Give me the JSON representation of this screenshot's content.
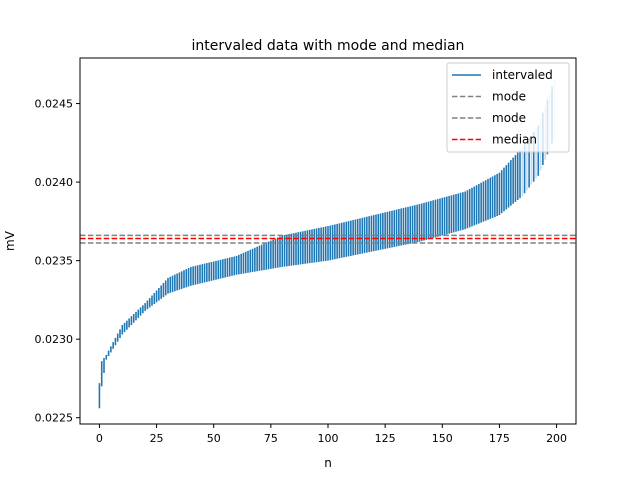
{
  "colors": {
    "interval": "#1f77b4",
    "interval_light": "#c6dbef",
    "mode": "#808080",
    "median": "#ff0000"
  },
  "chart_data": {
    "type": "interval",
    "title": "intervaled data with mode and median",
    "xlabel": "n",
    "ylabel": "mV",
    "xlim": [
      -8.5,
      208.5
    ],
    "ylim": [
      0.02246,
      0.02479
    ],
    "x_ticks": [
      0,
      25,
      50,
      75,
      100,
      125,
      150,
      175,
      200
    ],
    "y_ticks": [
      0.0225,
      0.023,
      0.0235,
      0.024,
      0.0245
    ],
    "y_tick_labels": [
      "0.0225",
      "0.0230",
      "0.0235",
      "0.0240",
      "0.0245"
    ],
    "grid": false,
    "legend_position": "top-right",
    "legend": [
      {
        "label": "intervaled",
        "style": "solid",
        "color": "#1f77b4"
      },
      {
        "label": "mode",
        "style": "dashed",
        "color": "#808080"
      },
      {
        "label": "mode",
        "style": "dashed",
        "color": "#808080"
      },
      {
        "label": "median",
        "style": "dashed",
        "color": "#ff0000"
      }
    ],
    "n_intervals": 200,
    "lower_anchors": [
      [
        0,
        0.02256
      ],
      [
        1,
        0.0227
      ],
      [
        3,
        0.02287
      ],
      [
        10,
        0.02303
      ],
      [
        20,
        0.02318
      ],
      [
        30,
        0.02329
      ],
      [
        40,
        0.02334
      ],
      [
        60,
        0.02341
      ],
      [
        80,
        0.02346
      ],
      [
        100,
        0.0235
      ],
      [
        120,
        0.02356
      ],
      [
        140,
        0.02362
      ],
      [
        160,
        0.0237
      ],
      [
        175,
        0.02379
      ],
      [
        185,
        0.02391
      ],
      [
        192,
        0.02404
      ],
      [
        199,
        0.02428
      ]
    ],
    "upper_anchors": [
      [
        0,
        0.02272
      ],
      [
        1,
        0.02286
      ],
      [
        3,
        0.0229
      ],
      [
        10,
        0.02309
      ],
      [
        20,
        0.02323
      ],
      [
        30,
        0.02339
      ],
      [
        40,
        0.02346
      ],
      [
        60,
        0.02353
      ],
      [
        80,
        0.02366
      ],
      [
        100,
        0.02372
      ],
      [
        120,
        0.02379
      ],
      [
        140,
        0.02386
      ],
      [
        160,
        0.02394
      ],
      [
        175,
        0.02406
      ],
      [
        185,
        0.02422
      ],
      [
        192,
        0.02436
      ],
      [
        199,
        0.02465
      ]
    ],
    "light_from_index": 185,
    "mode_lines": [
      0.023661,
      0.023612
    ],
    "median_line": 0.023641
  }
}
